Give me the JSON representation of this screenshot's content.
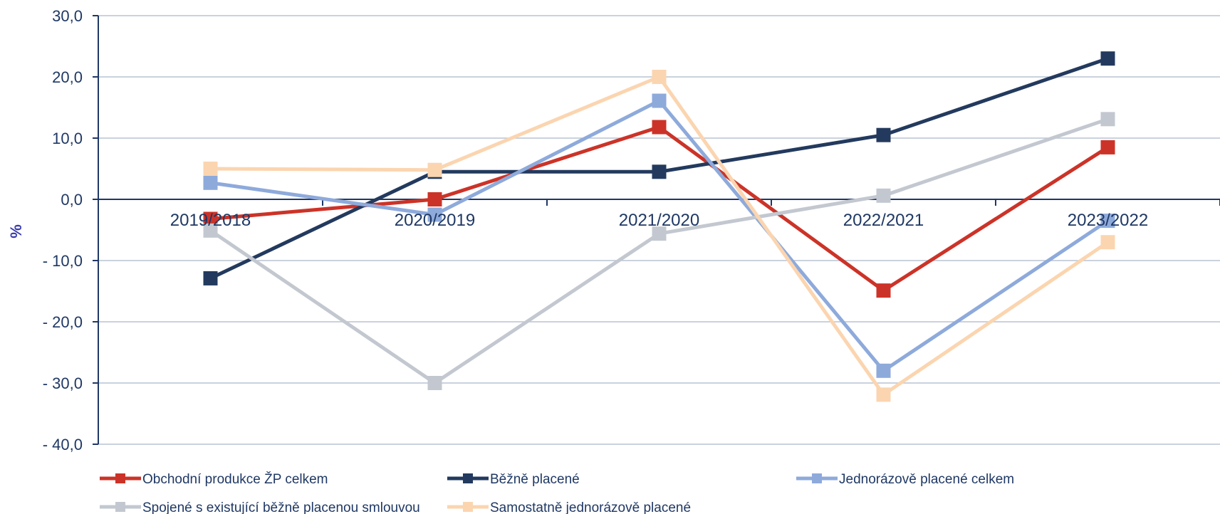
{
  "chart_data": {
    "type": "line",
    "ylabel": "%",
    "ylim": [
      -40,
      30
    ],
    "yticks": [
      30,
      20,
      10,
      0,
      -10,
      -20,
      -30,
      -40
    ],
    "ytick_labels": [
      "30,0",
      "20,0",
      "10,0",
      "0,0",
      "- 10,0",
      "- 20,0",
      "- 30,0",
      "- 40,0"
    ],
    "categories": [
      "2019/2018",
      "2020/2019",
      "2021/2020",
      "2022/2021",
      "2023/2022"
    ],
    "grid": true,
    "legend_position": "bottom",
    "series": [
      {
        "name": "Obchodní produkce ŽP celkem",
        "color": "#cc3328",
        "values": [
          -3.2,
          0.0,
          11.8,
          -14.9,
          8.5
        ]
      },
      {
        "name": "Běžně placené",
        "color": "#233a5e",
        "values": [
          -12.9,
          4.5,
          4.5,
          10.5,
          23.0
        ]
      },
      {
        "name": "Jednorázově placené celkem",
        "color": "#8eaadb",
        "values": [
          2.7,
          -2.5,
          16.1,
          -28.0,
          -3.5
        ]
      },
      {
        "name": "Spojené s existující běžně placenou smlouvou",
        "color": "#c3c8d0",
        "values": [
          -5.1,
          -30.0,
          -5.6,
          0.6,
          13.1
        ]
      },
      {
        "name": "Samostatně jednorázově placené",
        "color": "#fbd5b0",
        "values": [
          5.0,
          4.8,
          20.0,
          -31.9,
          -7.0
        ]
      }
    ]
  }
}
